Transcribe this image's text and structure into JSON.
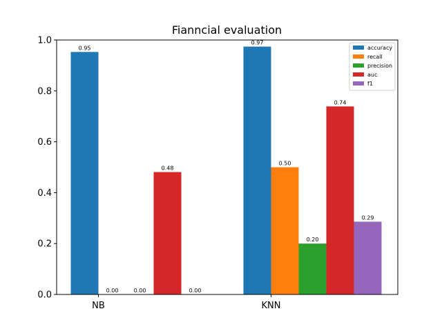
{
  "chart_data": {
    "type": "bar",
    "title": "Fianncial evaluation",
    "xlabel": "",
    "ylabel": "",
    "categories": [
      "NB",
      "KNN"
    ],
    "ylim": [
      0,
      1.0
    ],
    "yticks": [
      0.0,
      0.2,
      0.4,
      0.6,
      0.8,
      1.0
    ],
    "ytick_labels": [
      "0.0",
      "0.2",
      "0.4",
      "0.6",
      "0.8",
      "1.0"
    ],
    "grid": false,
    "legend_position": "top-right",
    "series": [
      {
        "name": "accuracy",
        "color": "#1f77b4",
        "values": [
          0.953,
          0.974
        ],
        "labels": [
          "0.95",
          "0.97"
        ]
      },
      {
        "name": "recall",
        "color": "#ff7f0e",
        "values": [
          0.0,
          0.5
        ],
        "labels": [
          "0.00",
          "0.50"
        ]
      },
      {
        "name": "precision",
        "color": "#2ca02c",
        "values": [
          0.0,
          0.2
        ],
        "labels": [
          "0.00",
          "0.20"
        ]
      },
      {
        "name": "auc",
        "color": "#d62728",
        "values": [
          0.481,
          0.739
        ],
        "labels": [
          "0.48",
          "0.74"
        ]
      },
      {
        "name": "f1",
        "color": "#9467bd",
        "values": [
          0.0,
          0.286
        ],
        "labels": [
          "0.00",
          "0.29"
        ]
      }
    ]
  }
}
